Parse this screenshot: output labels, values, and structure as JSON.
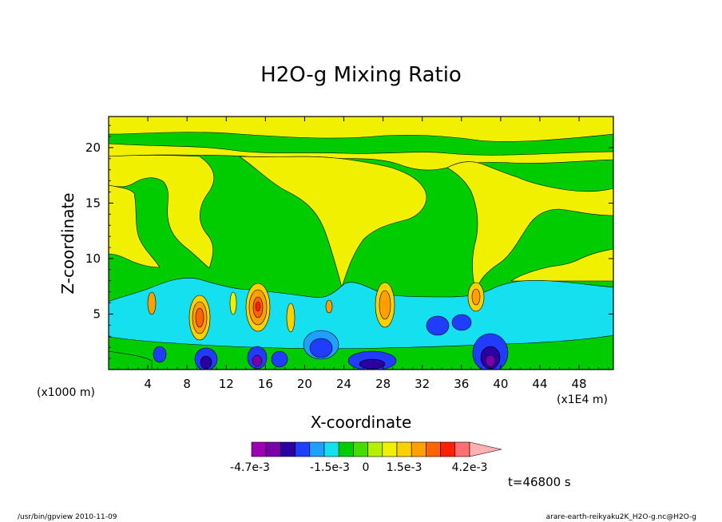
{
  "chart_data": {
    "type": "heatmap",
    "title": "H2O-g Mixing Ratio",
    "xlabel": "X-coordinate",
    "ylabel": "Z-coordinate",
    "x_unit_left": "(x1000 m)",
    "x_unit_right": "(x1E4 m)",
    "xlim": [
      0,
      51.5
    ],
    "ylim": [
      0,
      22.8
    ],
    "x_ticks": [
      4,
      8,
      12,
      16,
      20,
      24,
      28,
      32,
      36,
      40,
      44,
      48
    ],
    "y_ticks": [
      5,
      10,
      15,
      20
    ],
    "colorbar": {
      "colors": [
        "#9d00b4",
        "#7a00a8",
        "#2a00a0",
        "#1f3cff",
        "#1fa0ff",
        "#14e0f0",
        "#00cc00",
        "#44dd00",
        "#b4f000",
        "#f0f000",
        "#ffd000",
        "#ffa000",
        "#ff6400",
        "#ff2000",
        "#ff7070",
        "#ffb0b0"
      ],
      "labels": [
        "-4.7e-3",
        "-1.5e-3",
        "0",
        "1.5e-3",
        "4.2e-3"
      ]
    },
    "background_level": "0 to 1.5e-3 (green / yellow bands)",
    "features": [
      {
        "x": 9,
        "z": 4.8,
        "level": "positive max"
      },
      {
        "x": 15,
        "z": 5.5,
        "level": "positive max"
      },
      {
        "x": 28,
        "z": 5.5,
        "level": "positive max"
      },
      {
        "x": 37,
        "z": 6.5,
        "level": "positive"
      },
      {
        "x": 10,
        "z": 1,
        "level": "negative min"
      },
      {
        "x": 21,
        "z": 2,
        "level": "negative"
      },
      {
        "x": 27,
        "z": 1,
        "level": "negative"
      },
      {
        "x": 38,
        "z": 2,
        "level": "negative min"
      }
    ]
  },
  "annotation_time": "t=46800 s",
  "footer_left": "/usr/bin/gpview  2010-11-09",
  "footer_right": "arare-earth-reikyaku2K_H2O-g.nc@H2O-g"
}
